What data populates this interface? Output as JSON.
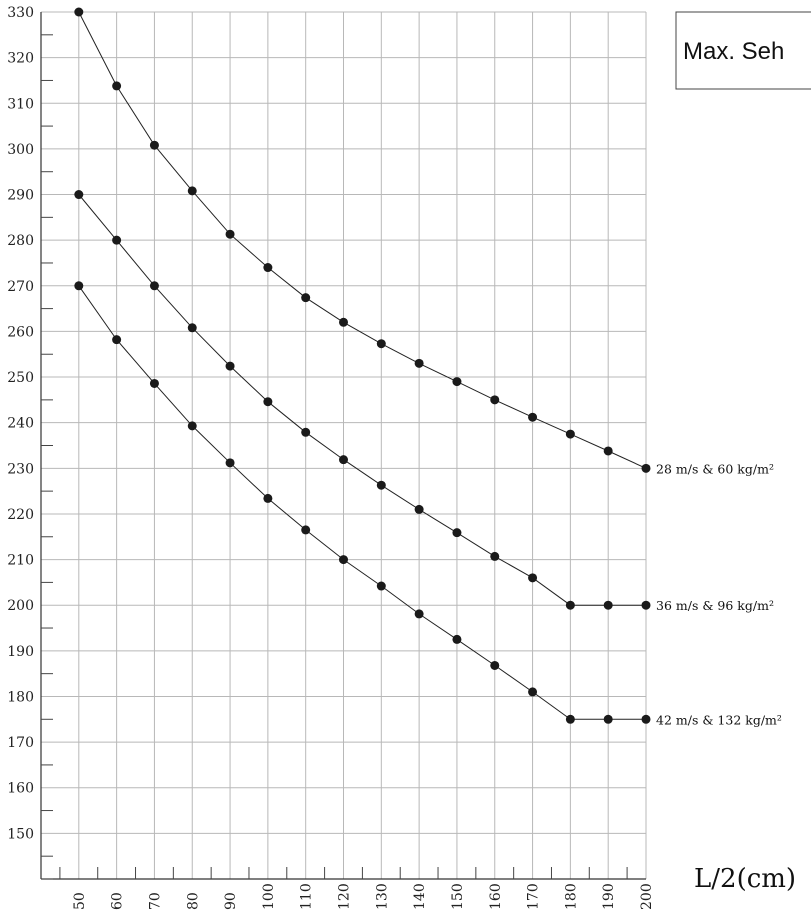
{
  "chart_data": {
    "type": "line",
    "title": "Max. Seh",
    "xlabel": "L/2(cm)",
    "ylabel": "",
    "x": [
      50,
      60,
      70,
      80,
      90,
      100,
      110,
      120,
      130,
      140,
      150,
      160,
      170,
      180,
      190,
      200
    ],
    "xlim": [
      40,
      200
    ],
    "ylim": [
      140,
      330
    ],
    "x_ticks": [
      50,
      60,
      70,
      80,
      90,
      100,
      110,
      120,
      130,
      140,
      150,
      160,
      170,
      180,
      190,
      200
    ],
    "y_ticks": [
      150,
      160,
      170,
      180,
      190,
      200,
      210,
      220,
      230,
      240,
      250,
      260,
      270,
      280,
      290,
      300,
      310,
      320,
      330
    ],
    "grid": true,
    "series": [
      {
        "name": "28 m/s  & 60 kg/m²",
        "values": [
          330,
          313.8,
          300.8,
          290.8,
          281.3,
          274,
          267.4,
          262,
          257.3,
          253,
          249,
          245,
          241.2,
          237.5,
          233.8,
          230
        ]
      },
      {
        "name": "36 m/s  & 96 kg/m²",
        "values": [
          290,
          280,
          270,
          260.8,
          252.4,
          244.6,
          237.9,
          231.9,
          226.3,
          221,
          215.9,
          210.7,
          206,
          200,
          200,
          200
        ]
      },
      {
        "name": "42 m/s  & 132 kg/m²",
        "values": [
          270,
          258.2,
          248.6,
          239.3,
          231.2,
          223.4,
          216.5,
          210,
          204.2,
          198.1,
          192.5,
          186.8,
          181,
          175,
          175,
          175
        ]
      }
    ]
  }
}
